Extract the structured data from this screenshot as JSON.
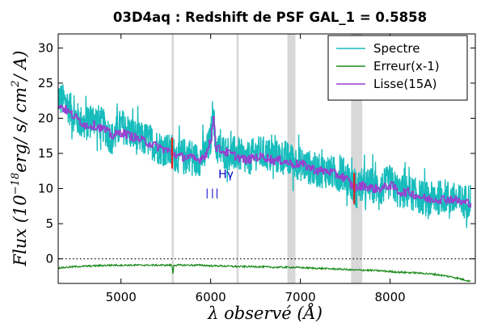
{
  "chart_data": {
    "type": "line",
    "title": "03D4aq : Redshift de PSF GAL_1 = 0.5858",
    "xlabel": "λ observé (Å)",
    "ylabel": "Flux (10^-18 erg/ s/ cm^2/ A)",
    "ylabel_parts": {
      "base": "Flux (10",
      "exp": "−18",
      "rest": "erg/ s/ cm",
      "exp2": "2",
      "tail": "/ A)"
    },
    "xlim": [
      4300,
      8950
    ],
    "ylim": [
      -3.5,
      32
    ],
    "xticks": [
      5000,
      6000,
      7000,
      8000
    ],
    "yticks": [
      0,
      5,
      10,
      15,
      20,
      25,
      30
    ],
    "grid": false,
    "legend": {
      "placement": "top-right",
      "entries": [
        {
          "label": "Spectre",
          "color": "#17bcbc"
        },
        {
          "label": "Erreur(x-1)",
          "color": "#1a8a1a"
        },
        {
          "label": "Lisse(15A)",
          "color": "#9a3fd0"
        }
      ]
    },
    "zero_line": {
      "y": 0,
      "style": "dotted"
    },
    "bands": [
      {
        "x0": 6855,
        "x1": 6945,
        "color": "#d8d8d8"
      },
      {
        "x0": 7565,
        "x1": 7690,
        "color": "#d8d8d8"
      }
    ],
    "sky_lines": [
      5577,
      6300
    ],
    "red_markers": [
      5570,
      7600
    ],
    "line_labels": [
      {
        "label": "Hγ",
        "x": 6085,
        "y": 11.5,
        "color": "#0000cc"
      }
    ],
    "line_ticks": [
      5960,
      6020,
      6070
    ],
    "series": [
      {
        "name": "Spectre",
        "color": "#17bcbc",
        "x": [
          4300,
          4400,
          4500,
          4600,
          4700,
          4800,
          4900,
          5000,
          5100,
          5200,
          5300,
          5400,
          5500,
          5577,
          5650,
          5750,
          5850,
          5950,
          6000,
          6030,
          6050,
          6100,
          6200,
          6300,
          6400,
          6500,
          6600,
          6700,
          6800,
          6900,
          7000,
          7100,
          7200,
          7300,
          7400,
          7500,
          7600,
          7700,
          7800,
          7900,
          8000,
          8100,
          8200,
          8300,
          8400,
          8500,
          8600,
          8700,
          8800,
          8900
        ],
        "y": [
          23,
          22,
          20,
          19,
          20,
          19,
          17,
          19,
          18,
          17,
          17,
          16,
          15.5,
          15,
          14.5,
          15,
          14,
          15,
          17,
          22,
          16,
          15.5,
          15,
          15,
          14,
          15,
          15,
          14.5,
          14.5,
          14,
          13.5,
          13,
          12.5,
          12.5,
          12,
          12,
          10,
          10.5,
          10.5,
          10,
          11,
          9.5,
          9.5,
          9,
          8.5,
          8.5,
          9,
          8.5,
          8,
          8.5
        ],
        "noise_amplitude": 2.5
      },
      {
        "name": "Lisse(15A)",
        "color": "#9a3fd0",
        "x": [
          4300,
          4400,
          4500,
          4600,
          4700,
          4800,
          4900,
          5000,
          5100,
          5200,
          5300,
          5400,
          5500,
          5577,
          5650,
          5750,
          5850,
          5950,
          6000,
          6030,
          6050,
          6100,
          6200,
          6300,
          6400,
          6500,
          6600,
          6700,
          6800,
          6900,
          7000,
          7100,
          7200,
          7300,
          7400,
          7500,
          7600,
          7700,
          7800,
          7900,
          8000,
          8100,
          8200,
          8300,
          8400,
          8500,
          8600,
          8700,
          8800,
          8900
        ],
        "y": [
          22,
          21,
          20,
          19,
          19,
          18.5,
          17.5,
          18,
          17.5,
          17,
          16.5,
          16,
          15.5,
          15,
          14.5,
          14.5,
          14,
          15,
          17,
          21,
          16,
          15.5,
          15,
          14.5,
          14,
          14.5,
          14.5,
          14,
          14,
          13.5,
          13.5,
          13,
          12.5,
          12.5,
          12,
          11.5,
          10,
          10.5,
          10,
          10,
          10.5,
          9.5,
          9.5,
          9,
          8.5,
          8.5,
          8.5,
          8.5,
          8,
          8
        ],
        "noise_amplitude": 0.6
      },
      {
        "name": "Erreur(x-1)",
        "color": "#1a8a1a",
        "x": [
          4300,
          4500,
          4700,
          4900,
          5100,
          5300,
          5500,
          5570,
          5577,
          5590,
          5700,
          5900,
          6000,
          6100,
          6300,
          6500,
          6700,
          6900,
          7100,
          7300,
          7500,
          7600,
          7700,
          7900,
          8100,
          8300,
          8500,
          8700,
          8800,
          8900
        ],
        "y": [
          -1.3,
          -1.1,
          -1.0,
          -0.9,
          -0.9,
          -0.9,
          -0.9,
          -0.9,
          -2.3,
          -0.9,
          -0.9,
          -0.9,
          -1.0,
          -1.0,
          -1.1,
          -1.1,
          -1.2,
          -1.2,
          -1.3,
          -1.4,
          -1.5,
          -1.6,
          -1.6,
          -1.7,
          -1.9,
          -2.0,
          -2.2,
          -2.6,
          -2.9,
          -3.2
        ],
        "noise_amplitude": 0.12
      }
    ]
  }
}
